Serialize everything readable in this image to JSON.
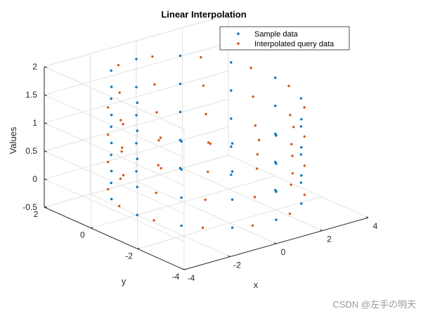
{
  "chart_data": {
    "type": "scatter",
    "title": "Linear Interpolation",
    "xlabel": "x",
    "ylabel": "y",
    "zlabel": "Values",
    "xticks": [
      -4,
      -2,
      0,
      2,
      4
    ],
    "yticks": [
      -4,
      -2,
      0,
      2
    ],
    "zticks": [
      -0.5,
      0,
      0.5,
      1,
      1.5,
      2
    ],
    "xlim": [
      -4,
      4
    ],
    "ylim": [
      -4,
      2
    ],
    "zlim": [
      -0.5,
      2
    ],
    "grid": true,
    "legend_location": "top-right",
    "series": [
      {
        "name": "Sample data",
        "color": "#0072BD",
        "marker": "dot",
        "curve": "helix",
        "t_range": [
          0.0,
          4.5
        ],
        "points_per_unit_t": 12,
        "sample_rule": "t from 0 to 4.5; x = 3cos(2πt); y = 3sin(2πt)-1; z = 0.5t"
      },
      {
        "name": "Interpolated query data",
        "color": "#D95319",
        "marker": "dot",
        "curve": "helix",
        "t_range": [
          0.2,
          4.3
        ],
        "points_per_unit_t": 12,
        "sample_rule": "same helix, query points offset between samples"
      }
    ]
  },
  "watermark": "CSDN @左手の明天"
}
